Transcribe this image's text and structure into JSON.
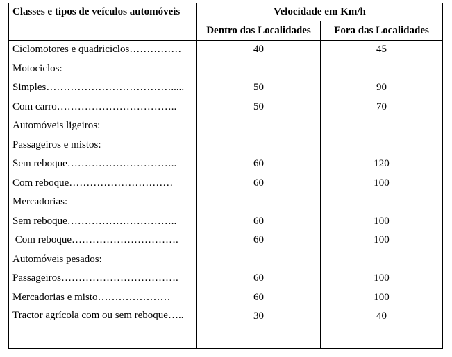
{
  "table": {
    "header": {
      "col1": "Classes e tipos de veículos automóveis",
      "group": "Velocidade em Km/h",
      "col2": "Dentro das Localidades",
      "col3": "Fora das Localidades"
    },
    "rows": [
      {
        "label": "Ciclomotores e quadriciclos……………",
        "dentro": 40,
        "fora": 45
      },
      {
        "label": "Motociclos:"
      },
      {
        "label": "Simples……………………………….....",
        "dentro": 50,
        "fora": 90
      },
      {
        "label": "Com carro……………………………..",
        "dentro": 50,
        "fora": 70
      },
      {
        "label": "Automóveis ligeiros:"
      },
      {
        "label": "Passageiros e mistos:"
      },
      {
        "label": "Sem reboque…………………………..",
        "dentro": 60,
        "fora": 120
      },
      {
        "label": "Com reboque…………………………",
        "dentro": 60,
        "fora": 100
      },
      {
        "label": "Mercadorias:"
      },
      {
        "label": "Sem reboque…………………………..",
        "dentro": 60,
        "fora": 100
      },
      {
        "label": " Com reboque………………………….",
        "dentro": 60,
        "fora": 100
      },
      {
        "label": "Automóveis pesados:"
      },
      {
        "label": "Passageiros…………………………….",
        "dentro": 60,
        "fora": 100
      },
      {
        "label": "Mercadorias e misto…………………",
        "dentro": 60,
        "fora": 100
      },
      {
        "label": "Tractor agrícola com ou sem reboque…..",
        "dentro": 30,
        "fora": 40
      }
    ]
  }
}
